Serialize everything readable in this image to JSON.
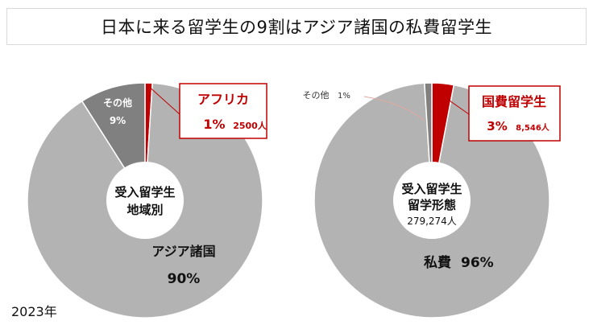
{
  "title": "日本に来る留学生の9割はアジア諸国の私費留学生",
  "footnote": "2023年",
  "colors": {
    "gray": "#b3b3b3",
    "dark_gray": "#808080",
    "red": "#c00000"
  },
  "chart_data": [
    {
      "type": "pie",
      "variant": "donut",
      "center_label": [
        "受入留学生",
        "地域別"
      ],
      "slices": [
        {
          "label": "アフリカ",
          "value": 1,
          "value_label": "1%",
          "sub_label": "2500人",
          "color": "#c00000",
          "callout": true
        },
        {
          "label": "アジア諸国",
          "value": 90,
          "value_label": "90%",
          "color": "#b3b3b3"
        },
        {
          "label": "その他",
          "value": 9,
          "value_label": "9%",
          "color": "#808080"
        }
      ]
    },
    {
      "type": "pie",
      "variant": "donut",
      "center_label": [
        "受入留学生",
        "留学形態"
      ],
      "center_value": "279,274人",
      "slices": [
        {
          "label": "国費留学生",
          "value": 3,
          "value_label": "3%",
          "sub_label": "8,546人",
          "color": "#c00000",
          "callout": true
        },
        {
          "label": "私費",
          "value": 96,
          "value_label": "96%",
          "color": "#b3b3b3"
        },
        {
          "label": "その他",
          "value": 1,
          "value_label": "1%",
          "color": "#808080"
        }
      ]
    }
  ]
}
